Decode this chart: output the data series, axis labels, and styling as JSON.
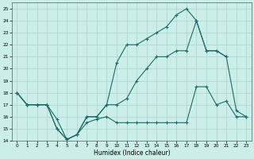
{
  "xlabel": "Humidex (Indice chaleur)",
  "bg_color": "#cceee8",
  "grid_color": "#b0d8d0",
  "line_color": "#1a6b6b",
  "xlim": [
    -0.5,
    23.5
  ],
  "ylim": [
    14,
    25.5
  ],
  "yticks": [
    14,
    15,
    16,
    17,
    18,
    19,
    20,
    21,
    22,
    23,
    24,
    25
  ],
  "xticks": [
    0,
    1,
    2,
    3,
    4,
    5,
    6,
    7,
    8,
    9,
    10,
    11,
    12,
    13,
    14,
    15,
    16,
    17,
    18,
    19,
    20,
    21,
    22,
    23
  ],
  "curve_top_x": [
    0,
    1,
    2,
    3,
    4,
    5,
    6,
    7,
    8,
    9,
    10,
    11,
    12,
    13,
    14,
    15,
    16,
    17,
    18,
    19,
    20,
    21
  ],
  "curve_top_y": [
    18,
    17,
    17,
    17,
    15,
    14.1,
    14.5,
    16,
    16,
    17,
    20.5,
    22,
    22,
    22.5,
    23,
    23.5,
    24.5,
    25,
    24,
    21.5,
    21.5,
    21
  ],
  "curve_mid_x": [
    0,
    1,
    2,
    3,
    4,
    5,
    6,
    7,
    8,
    9,
    10,
    11,
    12,
    13,
    14,
    15,
    16,
    17,
    18,
    19,
    20,
    21,
    22,
    23
  ],
  "curve_mid_y": [
    18,
    17,
    17,
    17,
    15,
    14.1,
    14.5,
    16,
    16,
    17,
    17,
    17.5,
    19,
    20,
    21,
    21,
    21.5,
    21.5,
    24,
    21.5,
    21.5,
    21,
    16.5,
    16
  ],
  "curve_bot_x": [
    0,
    1,
    2,
    3,
    4,
    5,
    6,
    7,
    8,
    9,
    10,
    11,
    12,
    13,
    14,
    15,
    16,
    17,
    18,
    19,
    20,
    21,
    22,
    23
  ],
  "curve_bot_y": [
    18,
    17,
    17,
    17,
    15.8,
    14.1,
    14.5,
    15.5,
    15.8,
    16,
    15.5,
    15.5,
    15.5,
    15.5,
    15.5,
    15.5,
    15.5,
    15.5,
    18.5,
    18.5,
    17,
    17.3,
    16,
    16
  ]
}
